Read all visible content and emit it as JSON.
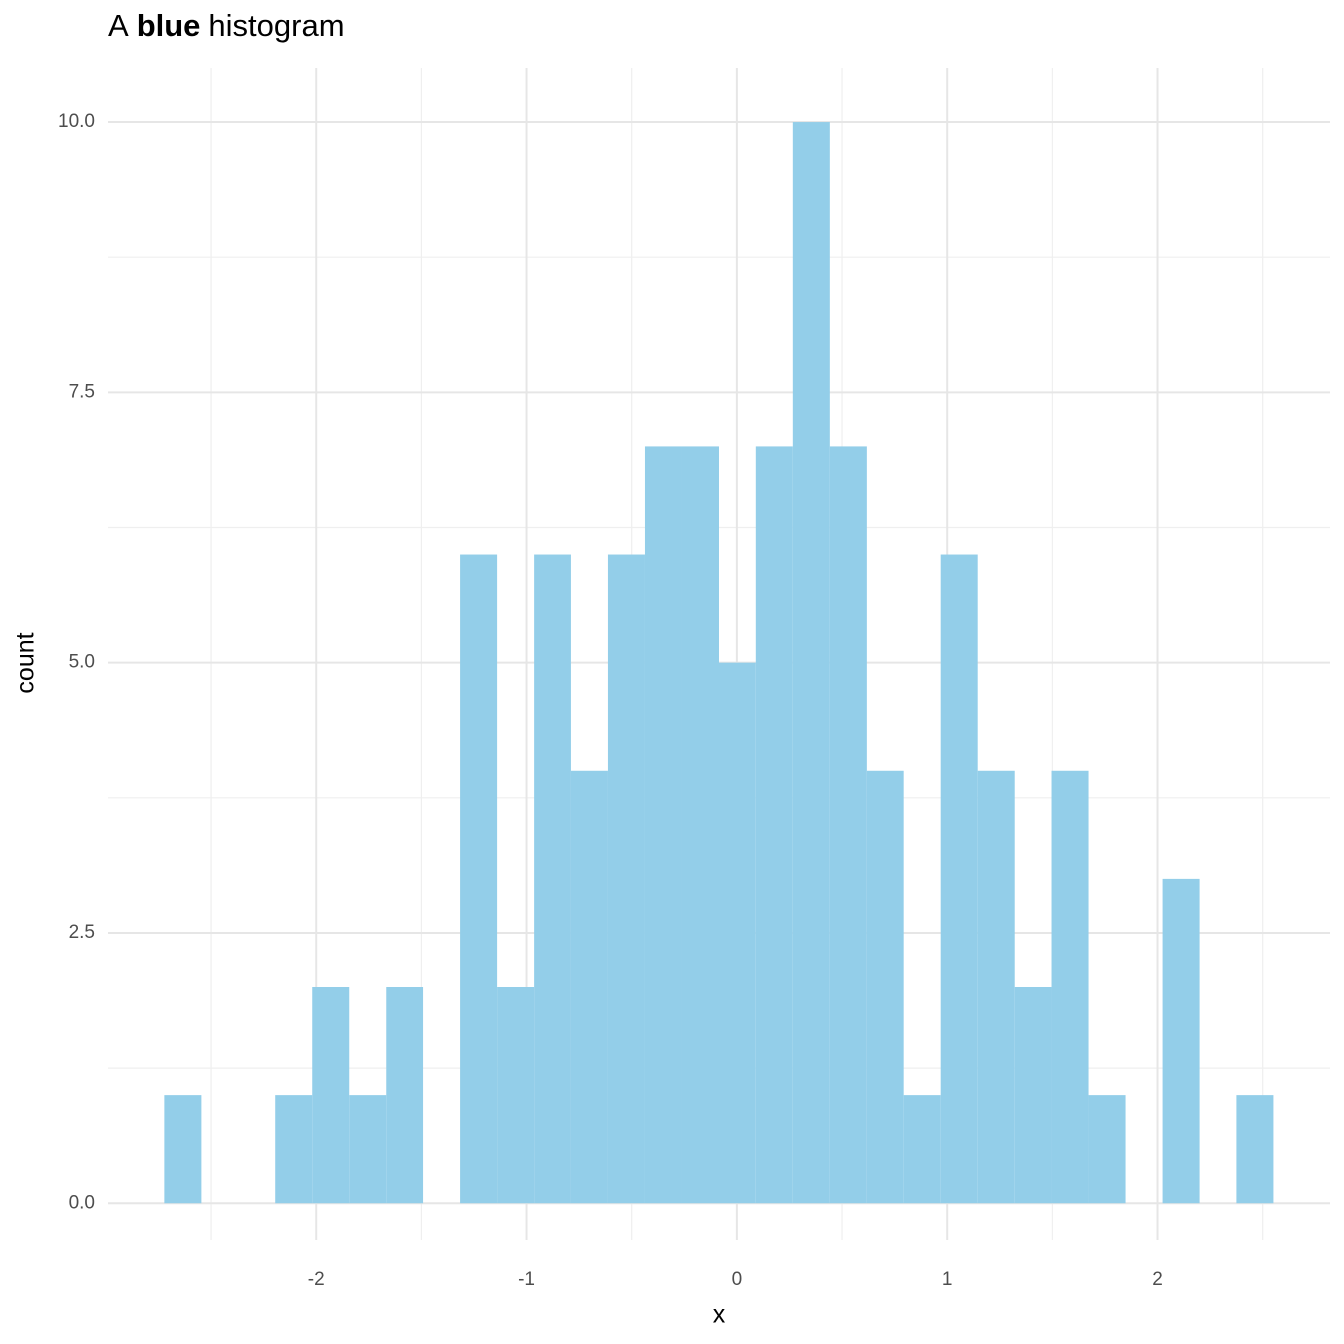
{
  "chart_data": {
    "type": "histogram",
    "title_parts": [
      {
        "text": "A"
      },
      {
        "text": "blue",
        "bold": true
      },
      {
        "text": "histogram"
      }
    ],
    "x_label": "x",
    "y_label": "count",
    "color": "#93cee9",
    "bins": [
      -2.722,
      -2.546,
      -2.371,
      -2.195,
      -2.019,
      -1.843,
      -1.667,
      -1.492,
      -1.316,
      -1.14,
      -0.964,
      -0.789,
      -0.613,
      -0.437,
      -0.261,
      -0.085,
      0.09,
      0.266,
      0.442,
      0.618,
      0.793,
      0.969,
      1.145,
      1.321,
      1.496,
      1.672,
      1.848,
      2.024,
      2.2,
      2.375,
      2.551
    ],
    "values": [
      1,
      0,
      0,
      1,
      2,
      1,
      2,
      0,
      6,
      2,
      6,
      4,
      6,
      7,
      7,
      5,
      7,
      10,
      7,
      4,
      1,
      6,
      4,
      2,
      4,
      1,
      0,
      3,
      0,
      1
    ],
    "xlim": [
      -2.99,
      2.82
    ],
    "ylim": [
      -0.34,
      10.5
    ],
    "xticks": [
      -2,
      -1,
      0,
      1,
      2
    ],
    "yticks": [
      {
        "value": 0,
        "label": "0.0"
      },
      2.5,
      {
        "value": 5,
        "label": "5.0"
      },
      7.5,
      {
        "value": 10,
        "label": "10.0"
      }
    ],
    "x_minor_grid": [
      -2.5,
      -1.5,
      -0.5,
      0.5,
      1.5,
      2.5
    ],
    "y_minor_grid": [
      1.25,
      3.75,
      6.25,
      8.75
    ],
    "grid": true
  }
}
